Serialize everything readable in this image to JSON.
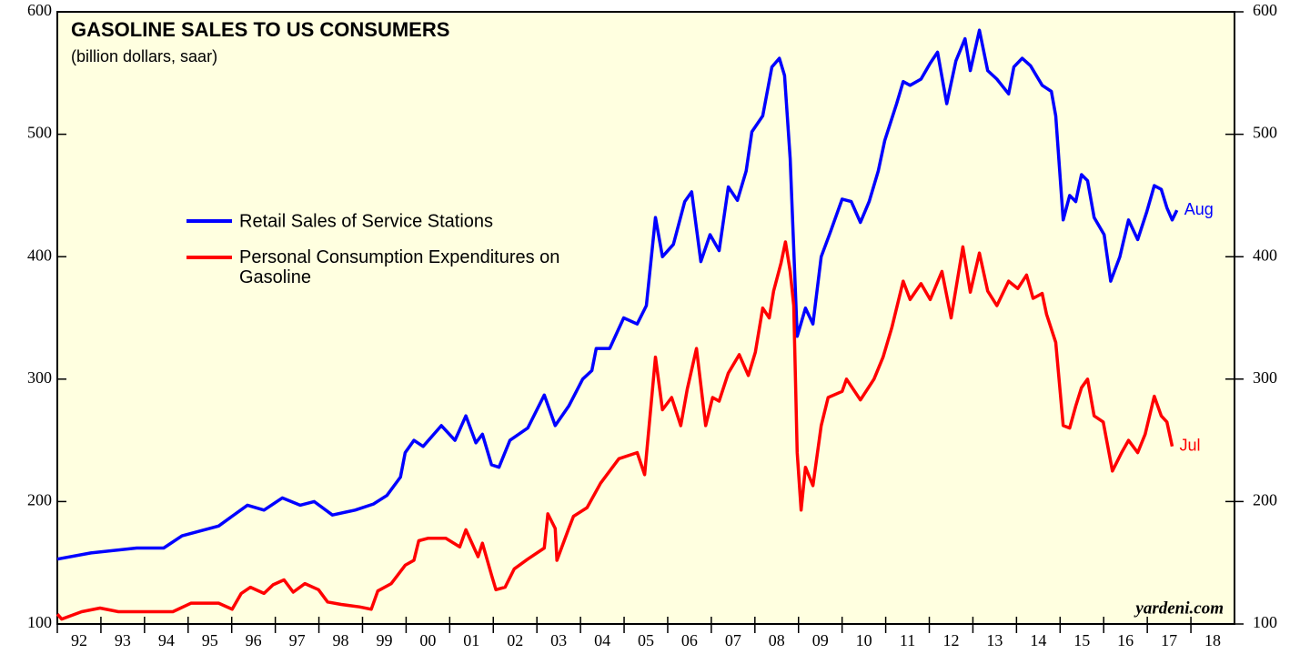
{
  "chart_data": {
    "type": "line",
    "title": "GASOLINE SALES TO US CONSUMERS",
    "subtitle": "(billion dollars, saar)",
    "source": "yardeni.com",
    "xlim": [
      1992,
      2019
    ],
    "xticks": [
      {
        "value": 1992,
        "label": "92"
      },
      {
        "value": 1993,
        "label": "93"
      },
      {
        "value": 1994,
        "label": "94"
      },
      {
        "value": 1995,
        "label": "95"
      },
      {
        "value": 1996,
        "label": "96"
      },
      {
        "value": 1997,
        "label": "97"
      },
      {
        "value": 1998,
        "label": "98"
      },
      {
        "value": 1999,
        "label": "99"
      },
      {
        "value": 2000,
        "label": "00"
      },
      {
        "value": 2001,
        "label": "01"
      },
      {
        "value": 2002,
        "label": "02"
      },
      {
        "value": 2003,
        "label": "03"
      },
      {
        "value": 2004,
        "label": "04"
      },
      {
        "value": 2005,
        "label": "05"
      },
      {
        "value": 2006,
        "label": "06"
      },
      {
        "value": 2007,
        "label": "07"
      },
      {
        "value": 2008,
        "label": "08"
      },
      {
        "value": 2009,
        "label": "09"
      },
      {
        "value": 2010,
        "label": "10"
      },
      {
        "value": 2011,
        "label": "11"
      },
      {
        "value": 2012,
        "label": "12"
      },
      {
        "value": 2013,
        "label": "13"
      },
      {
        "value": 2014,
        "label": "14"
      },
      {
        "value": 2015,
        "label": "15"
      },
      {
        "value": 2016,
        "label": "16"
      },
      {
        "value": 2017,
        "label": "17"
      },
      {
        "value": 2018,
        "label": "18"
      }
    ],
    "ylim": [
      100,
      600
    ],
    "yticks": [
      100,
      200,
      300,
      400,
      500,
      600
    ],
    "series": [
      {
        "name": "Retail Sales of Service Stations",
        "color": "#0000ff",
        "end_label": "Aug",
        "x": [
          1992.0,
          1992.77,
          1993.82,
          1994.44,
          1994.86,
          1995.7,
          1996.36,
          1996.74,
          1997.16,
          1997.57,
          1997.89,
          1998.31,
          1998.83,
          1999.25,
          1999.56,
          1999.87,
          1999.98,
          2000.18,
          2000.39,
          2000.81,
          2001.12,
          2001.37,
          2001.6,
          2001.75,
          2001.96,
          2002.13,
          2002.38,
          2002.79,
          2003.17,
          2003.42,
          2003.73,
          2004.05,
          2004.26,
          2004.36,
          2004.67,
          2004.99,
          2005.3,
          2005.51,
          2005.72,
          2005.88,
          2006.13,
          2006.39,
          2006.55,
          2006.76,
          2006.97,
          2007.18,
          2007.39,
          2007.6,
          2007.8,
          2007.93,
          2008.18,
          2008.39,
          2008.56,
          2008.68,
          2008.81,
          2008.97,
          2009.16,
          2009.33,
          2009.52,
          2009.73,
          2010.0,
          2010.21,
          2010.42,
          2010.62,
          2010.83,
          2010.98,
          2011.25,
          2011.4,
          2011.56,
          2011.81,
          2012.02,
          2012.19,
          2012.4,
          2012.61,
          2012.82,
          2012.94,
          2013.15,
          2013.34,
          2013.55,
          2013.82,
          2013.94,
          2014.13,
          2014.32,
          2014.59,
          2014.8,
          2014.9,
          2015.07,
          2015.22,
          2015.36,
          2015.49,
          2015.63,
          2015.78,
          2016.01,
          2016.16,
          2016.37,
          2016.57,
          2016.78,
          2016.99,
          2017.16,
          2017.32,
          2017.45,
          2017.57,
          2017.68
        ],
        "values": [
          153,
          158,
          162,
          162,
          172,
          180,
          197,
          193,
          203,
          197,
          200,
          189,
          193,
          198,
          205,
          220,
          240,
          250,
          245,
          262,
          250,
          270,
          248,
          255,
          230,
          228,
          250,
          260,
          287,
          262,
          278,
          300,
          307,
          325,
          325,
          350,
          345,
          360,
          432,
          400,
          410,
          445,
          453,
          396,
          418,
          405,
          457,
          446,
          470,
          502,
          515,
          555,
          562,
          548,
          480,
          335,
          358,
          345,
          400,
          420,
          447,
          445,
          428,
          445,
          470,
          495,
          525,
          543,
          540,
          545,
          558,
          567,
          525,
          560,
          578,
          552,
          585,
          552,
          545,
          533,
          555,
          562,
          556,
          540,
          535,
          515,
          430,
          450,
          445,
          467,
          462,
          432,
          418,
          380,
          400,
          430,
          414,
          437,
          458,
          455,
          440,
          430,
          438
        ]
      },
      {
        "name": "Personal Consumption Expenditures on Gasoline",
        "color": "#ff0000",
        "end_label": "Jul",
        "x": [
          1992.0,
          1992.1,
          1992.56,
          1992.98,
          1993.4,
          1993.82,
          1994.23,
          1994.65,
          1995.07,
          1995.7,
          1996.01,
          1996.22,
          1996.43,
          1996.74,
          1996.95,
          1997.2,
          1997.41,
          1997.68,
          1997.99,
          1998.2,
          1998.51,
          1998.93,
          1999.2,
          1999.35,
          1999.66,
          1999.98,
          2000.18,
          2000.29,
          2000.5,
          2000.91,
          2001.23,
          2001.37,
          2001.65,
          2001.75,
          2001.96,
          2002.06,
          2002.27,
          2002.48,
          2002.79,
          2003.17,
          2003.25,
          2003.42,
          2003.46,
          2003.73,
          2003.84,
          2004.15,
          2004.46,
          2004.88,
          2005.3,
          2005.47,
          2005.72,
          2005.88,
          2006.09,
          2006.3,
          2006.45,
          2006.66,
          2006.87,
          2007.03,
          2007.18,
          2007.39,
          2007.64,
          2007.85,
          2008.01,
          2008.18,
          2008.33,
          2008.43,
          2008.6,
          2008.7,
          2008.81,
          2008.89,
          2008.97,
          2009.06,
          2009.16,
          2009.33,
          2009.52,
          2009.68,
          2010.0,
          2010.1,
          2010.42,
          2010.73,
          2010.94,
          2011.14,
          2011.4,
          2011.56,
          2011.81,
          2012.02,
          2012.29,
          2012.5,
          2012.77,
          2012.94,
          2013.15,
          2013.34,
          2013.55,
          2013.82,
          2014.03,
          2014.23,
          2014.38,
          2014.59,
          2014.69,
          2014.9,
          2015.07,
          2015.22,
          2015.36,
          2015.49,
          2015.63,
          2015.78,
          2015.99,
          2016.2,
          2016.41,
          2016.57,
          2016.78,
          2016.95,
          2017.16,
          2017.32,
          2017.45,
          2017.57
        ],
        "values": [
          108,
          104,
          110,
          113,
          110,
          110,
          110,
          110,
          117,
          117,
          112,
          125,
          130,
          125,
          132,
          136,
          126,
          133,
          128,
          118,
          116,
          114,
          112,
          127,
          133,
          148,
          152,
          168,
          170,
          170,
          163,
          177,
          155,
          166,
          140,
          128,
          130,
          145,
          153,
          162,
          190,
          178,
          152,
          178,
          188,
          195,
          215,
          235,
          240,
          222,
          318,
          275,
          285,
          262,
          292,
          325,
          262,
          285,
          282,
          305,
          320,
          303,
          322,
          358,
          350,
          372,
          395,
          412,
          388,
          360,
          240,
          193,
          228,
          213,
          262,
          285,
          290,
          300,
          283,
          300,
          318,
          342,
          380,
          365,
          378,
          365,
          388,
          350,
          408,
          371,
          403,
          372,
          360,
          380,
          374,
          385,
          366,
          370,
          353,
          330,
          262,
          260,
          278,
          293,
          300,
          270,
          265,
          225,
          240,
          250,
          240,
          255,
          286,
          270,
          265,
          245
        ]
      }
    ]
  }
}
